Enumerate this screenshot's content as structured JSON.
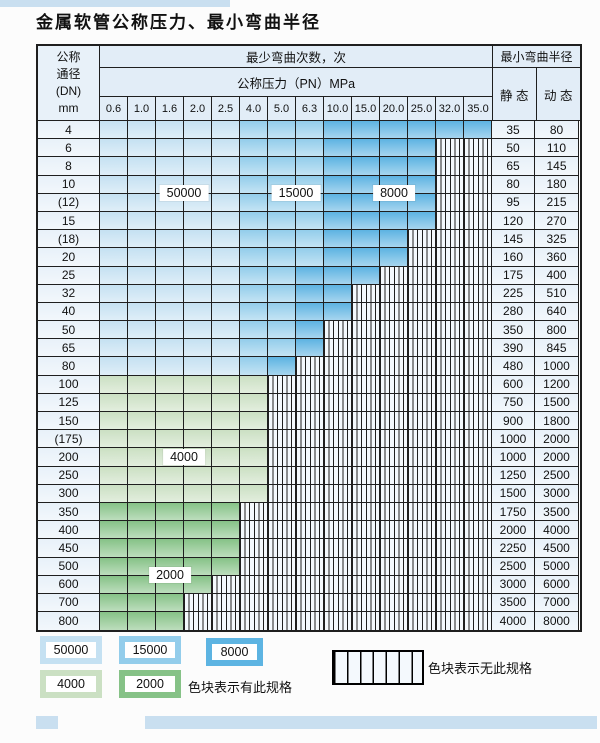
{
  "title": "金属软管公称压力、最小弯曲半径",
  "table": {
    "header": {
      "dn_label_lines": [
        "公称",
        "通径",
        "(DN)",
        "mm"
      ],
      "bend_times_label": "最少弯曲次数，次",
      "pressure_label": "公称压力（PN）MPa",
      "pressure_columns": [
        "0.6",
        "1.0",
        "1.6",
        "2.0",
        "2.5",
        "4.0",
        "5.0",
        "6.3",
        "10.0",
        "15.0",
        "20.0",
        "25.0",
        "32.0",
        "35.0"
      ],
      "radius_label": "最小弯曲半径",
      "static_label": "静 态",
      "dynamic_label": "动 态"
    },
    "cell_code_meaning": {
      "L": "50000次-浅蓝",
      "M": "15000次-中蓝",
      "D": "8000次-深蓝",
      "g": "4000次-浅绿",
      "G": "2000次-中绿",
      "X": "无此规格-竖线填充"
    },
    "rows": [
      {
        "dn": "4",
        "cells": "LLLLLMMMDDDDDD",
        "static": "35",
        "dynamic": "80"
      },
      {
        "dn": "6",
        "cells": "LLLLLMMMDDDDXX",
        "static": "50",
        "dynamic": "110"
      },
      {
        "dn": "8",
        "cells": "LLLLLMMMDDDDXX",
        "static": "65",
        "dynamic": "145"
      },
      {
        "dn": "10",
        "cells": "LLLLLMMMDDDDXX",
        "static": "80",
        "dynamic": "180"
      },
      {
        "dn": "(12)",
        "cells": "LLLLLMMMDDDDXX",
        "static": "95",
        "dynamic": "215"
      },
      {
        "dn": "15",
        "cells": "LLLLLMMMDDDDXX",
        "static": "120",
        "dynamic": "270"
      },
      {
        "dn": "(18)",
        "cells": "LLLLLMMMDDDXXX",
        "static": "145",
        "dynamic": "325"
      },
      {
        "dn": "20",
        "cells": "LLLLLMMMDDDXXX",
        "static": "160",
        "dynamic": "360"
      },
      {
        "dn": "25",
        "cells": "LLLLLMMDDDXXXX",
        "static": "175",
        "dynamic": "400"
      },
      {
        "dn": "32",
        "cells": "LLLLLMMDDXXXXX",
        "static": "225",
        "dynamic": "510"
      },
      {
        "dn": "40",
        "cells": "LLLLLMMDDXXXXX",
        "static": "280",
        "dynamic": "640"
      },
      {
        "dn": "50",
        "cells": "LLLLLMMDXXXXXX",
        "static": "350",
        "dynamic": "800"
      },
      {
        "dn": "65",
        "cells": "LLLLLMMDXXXXXX",
        "static": "390",
        "dynamic": "845"
      },
      {
        "dn": "80",
        "cells": "LLLLLMDXXXXXXX",
        "static": "480",
        "dynamic": "1000"
      },
      {
        "dn": "100",
        "cells": "ggggggXXXXXXXX",
        "static": "600",
        "dynamic": "1200"
      },
      {
        "dn": "125",
        "cells": "ggggggXXXXXXXX",
        "static": "750",
        "dynamic": "1500"
      },
      {
        "dn": "150",
        "cells": "ggggggXXXXXXXX",
        "static": "900",
        "dynamic": "1800"
      },
      {
        "dn": "(175)",
        "cells": "ggggggXXXXXXXX",
        "static": "1000",
        "dynamic": "2000"
      },
      {
        "dn": "200",
        "cells": "ggggggXXXXXXXX",
        "static": "1000",
        "dynamic": "2000"
      },
      {
        "dn": "250",
        "cells": "ggggggXXXXXXXX",
        "static": "1250",
        "dynamic": "2500"
      },
      {
        "dn": "300",
        "cells": "ggggggXXXXXXXX",
        "static": "1500",
        "dynamic": "3000"
      },
      {
        "dn": "350",
        "cells": "GGGGGXXXXXXXXX",
        "static": "1750",
        "dynamic": "3500"
      },
      {
        "dn": "400",
        "cells": "GGGGGXXXXXXXXX",
        "static": "2000",
        "dynamic": "4000"
      },
      {
        "dn": "450",
        "cells": "GGGGGXXXXXXXXX",
        "static": "2250",
        "dynamic": "4500"
      },
      {
        "dn": "500",
        "cells": "GGGGGXXXXXXXXX",
        "static": "2500",
        "dynamic": "5000"
      },
      {
        "dn": "600",
        "cells": "GGGGXXXXXXXXXX",
        "static": "3000",
        "dynamic": "6000"
      },
      {
        "dn": "700",
        "cells": "GGGXXXXXXXXXXX",
        "static": "3500",
        "dynamic": "7000"
      },
      {
        "dn": "800",
        "cells": "GGGXXXXXXXXXXX",
        "static": "4000",
        "dynamic": "8000"
      }
    ],
    "overlays": [
      {
        "text": "50000",
        "col_start": 2,
        "col_end": 3,
        "row_start": 3,
        "row_end": 4
      },
      {
        "text": "15000",
        "col_start": 6,
        "col_end": 7,
        "row_start": 3,
        "row_end": 4
      },
      {
        "text": "8000",
        "col_start": 9,
        "col_end": 11,
        "row_start": 3,
        "row_end": 4
      },
      {
        "text": "4000",
        "col_start": 2,
        "col_end": 3,
        "row_start": 18,
        "row_end": 18
      },
      {
        "text": "2000",
        "col_start": 1,
        "col_end": 3,
        "row_start": 24,
        "row_end": 25
      }
    ]
  },
  "legend": {
    "items": [
      {
        "label": "50000",
        "color_key": "blue_50000"
      },
      {
        "label": "15000",
        "color_key": "blue_15000"
      },
      {
        "label": "8000",
        "color_key": "blue_8000"
      },
      {
        "label": "4000",
        "color_key": "green_4000"
      },
      {
        "label": "2000",
        "color_key": "green_2000"
      }
    ],
    "has_spec_label": "色块表示有此规格",
    "no_spec_label": "色块表示无此规格"
  },
  "palette": {
    "blue_50000": "#c5e1f2",
    "blue_15000": "#93cdeb",
    "blue_8000": "#5db4e2",
    "green_4000": "#cbe0c3",
    "green_2000": "#86c287",
    "hatch_bg": "#f4f9fd",
    "grid_line": "#1f1f1f",
    "accent_strip": "#c9dff0"
  }
}
